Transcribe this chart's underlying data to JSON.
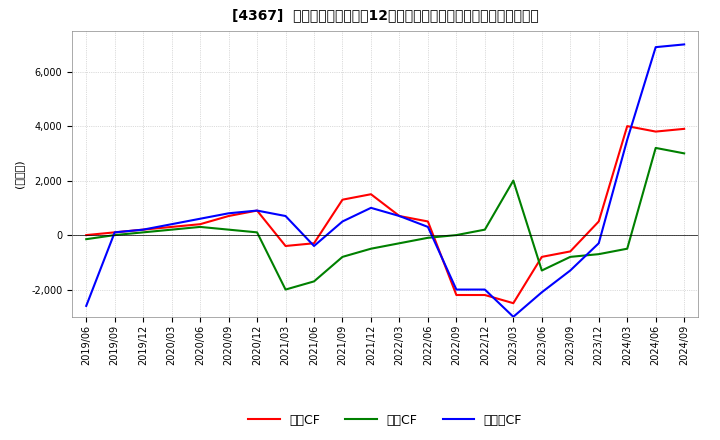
{
  "title": "[4367]  キャッシュフローの12か月移動合計の対前年同期増減額の推移",
  "ylabel": "(百万円)",
  "ylim": [
    -3000,
    7500
  ],
  "yticks": [
    -2000,
    0,
    2000,
    4000,
    6000
  ],
  "series": {
    "営業CF": {
      "color": "#ff0000",
      "data": [
        [
          "2019/06",
          0
        ],
        [
          "2019/09",
          100
        ],
        [
          "2019/12",
          200
        ],
        [
          "2020/03",
          300
        ],
        [
          "2020/06",
          400
        ],
        [
          "2020/09",
          700
        ],
        [
          "2020/12",
          900
        ],
        [
          "2021/03",
          -400
        ],
        [
          "2021/06",
          -300
        ],
        [
          "2021/09",
          1300
        ],
        [
          "2021/12",
          1500
        ],
        [
          "2022/03",
          700
        ],
        [
          "2022/06",
          500
        ],
        [
          "2022/09",
          -2200
        ],
        [
          "2022/12",
          -2200
        ],
        [
          "2023/03",
          -2500
        ],
        [
          "2023/06",
          -800
        ],
        [
          "2023/09",
          -600
        ],
        [
          "2023/12",
          500
        ],
        [
          "2024/03",
          4000
        ],
        [
          "2024/06",
          3800
        ],
        [
          "2024/09",
          3900
        ]
      ]
    },
    "投資CF": {
      "color": "#008000",
      "data": [
        [
          "2019/06",
          -150
        ],
        [
          "2019/09",
          0
        ],
        [
          "2019/12",
          100
        ],
        [
          "2020/03",
          200
        ],
        [
          "2020/06",
          300
        ],
        [
          "2020/09",
          200
        ],
        [
          "2020/12",
          100
        ],
        [
          "2021/03",
          -2000
        ],
        [
          "2021/06",
          -1700
        ],
        [
          "2021/09",
          -800
        ],
        [
          "2021/12",
          -500
        ],
        [
          "2022/03",
          -300
        ],
        [
          "2022/06",
          -100
        ],
        [
          "2022/09",
          0
        ],
        [
          "2022/12",
          200
        ],
        [
          "2023/03",
          2000
        ],
        [
          "2023/06",
          -1300
        ],
        [
          "2023/09",
          -800
        ],
        [
          "2023/12",
          -700
        ],
        [
          "2024/03",
          -500
        ],
        [
          "2024/06",
          3200
        ],
        [
          "2024/09",
          3000
        ]
      ]
    },
    "フリーCF": {
      "color": "#0000ff",
      "data": [
        [
          "2019/06",
          -2600
        ],
        [
          "2019/09",
          100
        ],
        [
          "2019/12",
          200
        ],
        [
          "2020/03",
          400
        ],
        [
          "2020/06",
          600
        ],
        [
          "2020/09",
          800
        ],
        [
          "2020/12",
          900
        ],
        [
          "2021/03",
          700
        ],
        [
          "2021/06",
          -400
        ],
        [
          "2021/09",
          500
        ],
        [
          "2021/12",
          1000
        ],
        [
          "2022/03",
          700
        ],
        [
          "2022/06",
          300
        ],
        [
          "2022/09",
          -2000
        ],
        [
          "2022/12",
          -2000
        ],
        [
          "2023/03",
          -3000
        ],
        [
          "2023/06",
          -2100
        ],
        [
          "2023/09",
          -1300
        ],
        [
          "2023/12",
          -300
        ],
        [
          "2024/03",
          3500
        ],
        [
          "2024/06",
          6900
        ],
        [
          "2024/09",
          7000
        ]
      ]
    }
  },
  "background_color": "#ffffff",
  "plot_bg_color": "#ffffff",
  "grid_color": "#bbbbbb",
  "legend_labels": [
    "営業CF",
    "投資CF",
    "フリーCF"
  ]
}
